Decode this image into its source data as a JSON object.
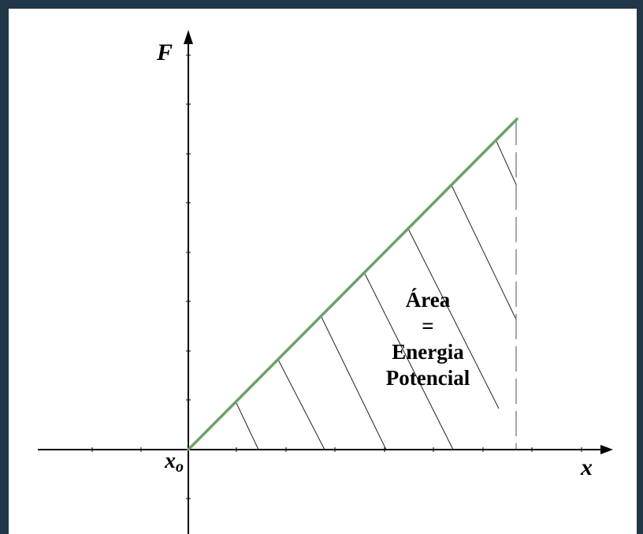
{
  "labels": {
    "f_axis": "F",
    "x_axis": "x",
    "origin": "x",
    "origin_sub": "o"
  },
  "annotation": {
    "line1": "Área",
    "line2": "=",
    "line3": "Energia",
    "line4": "Potencial"
  },
  "colors": {
    "frame": "#1f3747",
    "line": "#6aa06a",
    "axes": "#000000",
    "hatch": "#222222",
    "dashed": "#888888"
  }
}
